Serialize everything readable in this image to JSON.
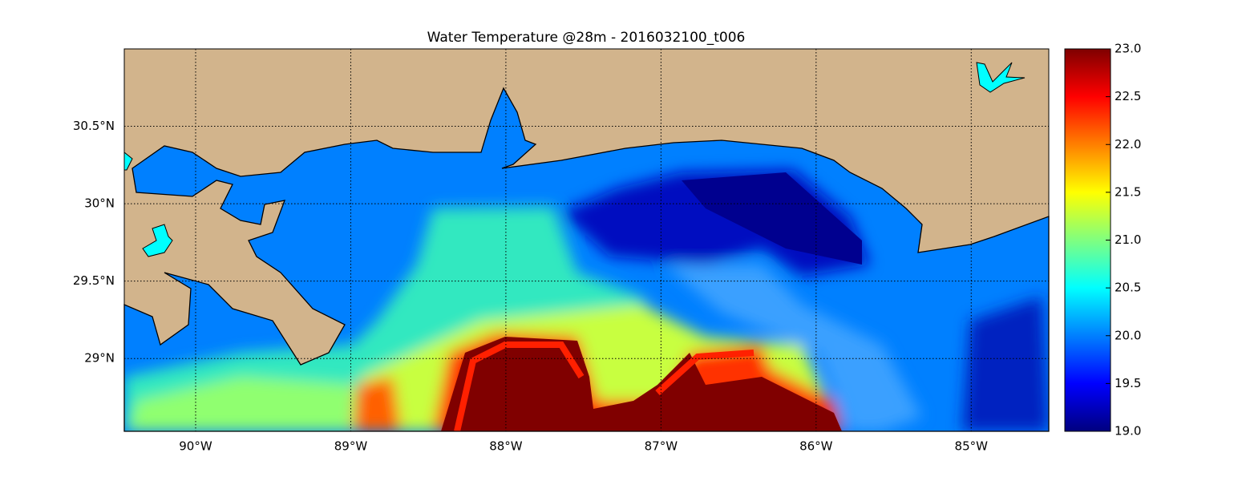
{
  "chart_data": {
    "type": "map",
    "title": "Water Temperature @28m - 2016032100_t006",
    "xlim": [
      -90.46,
      -84.5
    ],
    "ylim": [
      28.53,
      31.0
    ],
    "xticks": [
      {
        "value": -90,
        "label": "90°W"
      },
      {
        "value": -89,
        "label": "89°W"
      },
      {
        "value": -88,
        "label": "88°W"
      },
      {
        "value": -87,
        "label": "87°W"
      },
      {
        "value": -86,
        "label": "86°W"
      },
      {
        "value": -85,
        "label": "85°W"
      }
    ],
    "yticks": [
      {
        "value": 29,
        "label": "29°N"
      },
      {
        "value": 29.5,
        "label": "29.5°N"
      },
      {
        "value": 30,
        "label": "30°N"
      },
      {
        "value": 30.5,
        "label": "30.5°N"
      }
    ],
    "grid": true,
    "colormap": "jet",
    "colorbar_lim": [
      19.0,
      23.0
    ],
    "colorbar_ticks": [
      {
        "value": 19,
        "label": "19.0"
      },
      19.5,
      {
        "value": 20,
        "label": "20.0"
      },
      20.5,
      {
        "value": 21,
        "label": "21.0"
      },
      21.5,
      {
        "value": 22,
        "label": "22.0"
      },
      22.5,
      {
        "value": 23,
        "label": "23.0"
      }
    ]
  }
}
